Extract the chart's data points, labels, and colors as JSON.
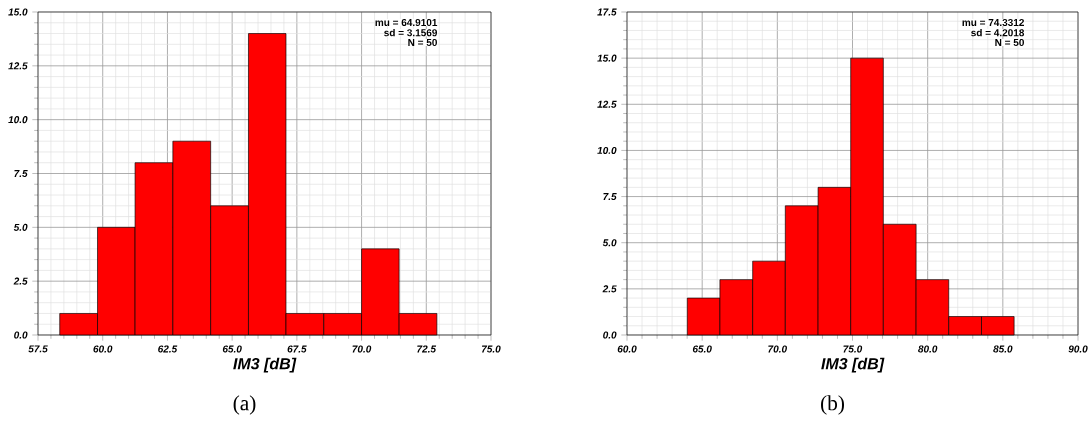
{
  "chart_data": [
    {
      "type": "histogram",
      "xlabel": "IM3 [dB]",
      "color": "#ff0000",
      "bins": [
        58.34,
        59.8,
        61.25,
        62.71,
        64.17,
        65.63,
        67.08,
        68.54,
        70.0,
        71.45,
        72.91
      ],
      "values": [
        1,
        5,
        8,
        9,
        6,
        14,
        1,
        1,
        4,
        1
      ],
      "xlim": [
        57.5,
        75.0
      ],
      "ylim": [
        0,
        15.0
      ],
      "xticks": [
        {
          "value": 57.5,
          "label": "57.5"
        },
        {
          "value": 60,
          "label": "60.0"
        },
        {
          "value": 62.5,
          "label": "62.5"
        },
        {
          "value": 65,
          "label": "65.0"
        },
        {
          "value": 67.5,
          "label": "67.5"
        },
        {
          "value": 70,
          "label": "70.0"
        },
        {
          "value": 72.5,
          "label": "72.5"
        },
        {
          "value": 75,
          "label": "75.0"
        }
      ],
      "yticks": [
        {
          "value": 0,
          "label": "0.0"
        },
        {
          "value": 2.5,
          "label": "2.5"
        },
        {
          "value": 5,
          "label": "5.0"
        },
        {
          "value": 7.5,
          "label": "7.5"
        },
        {
          "value": 10,
          "label": "10.0"
        },
        {
          "value": 12.5,
          "label": "12.5"
        },
        {
          "value": 15,
          "label": "15.0"
        }
      ],
      "grid": true,
      "annotations": [
        "mu = 64.9101",
        "sd = 3.1569",
        "N = 50",
        "(a)"
      ]
    },
    {
      "type": "histogram",
      "xlabel": "IM3 [dB]",
      "color": "#ff0000",
      "bins": [
        64.01,
        66.18,
        68.36,
        70.53,
        72.71,
        74.88,
        77.05,
        79.23,
        81.4,
        83.58,
        85.75
      ],
      "values": [
        2,
        3,
        4,
        7,
        8,
        15,
        6,
        3,
        1,
        1
      ],
      "xlim": [
        60.0,
        90.0
      ],
      "ylim": [
        0,
        17.5
      ],
      "xticks": [
        {
          "value": 60,
          "label": "60.0"
        },
        {
          "value": 65,
          "label": "65.0"
        },
        {
          "value": 70,
          "label": "70.0"
        },
        {
          "value": 75,
          "label": "75.0"
        },
        {
          "value": 80,
          "label": "80.0"
        },
        {
          "value": 85,
          "label": "85.0"
        },
        {
          "value": 90,
          "label": "90.0"
        }
      ],
      "yticks": [
        {
          "value": 0,
          "label": "0.0"
        },
        {
          "value": 2.5,
          "label": "2.5"
        },
        {
          "value": 5,
          "label": "5.0"
        },
        {
          "value": 7.5,
          "label": "7.5"
        },
        {
          "value": 10,
          "label": "10.0"
        },
        {
          "value": 12.5,
          "label": "12.5"
        },
        {
          "value": 15,
          "label": "15.0"
        },
        {
          "value": 17.5,
          "label": "17.5"
        }
      ],
      "grid": true,
      "annotations": [
        "mu = 74.3312",
        "sd = 4.2018",
        "N = 50",
        "(b)"
      ]
    }
  ]
}
